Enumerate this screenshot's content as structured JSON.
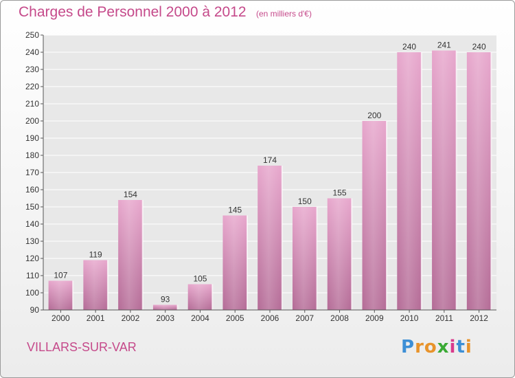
{
  "title": "Charges de Personnel 2000 à 2012",
  "subtitle": "(en milliers d'€)",
  "commune": "VILLARS-SUR-VAR",
  "logo": {
    "letters": [
      "P",
      "r",
      "o",
      "x",
      "i",
      "t",
      "i"
    ],
    "colors": [
      "#3d8fd6",
      "#e8932b",
      "#e8932b",
      "#3aaa35",
      "#d93a8c",
      "#3d8fd6",
      "#e8932b"
    ]
  },
  "colors": {
    "bar_top": "#e7a6cc",
    "bar_bottom": "#b46b96",
    "text": "#333333",
    "accent": "#c5498a",
    "grid": "#ffffff",
    "plot_bg": "#e8e8e8"
  },
  "chart_data": {
    "type": "bar",
    "categories": [
      "2000",
      "2001",
      "2002",
      "2003",
      "2004",
      "2005",
      "2006",
      "2007",
      "2008",
      "2009",
      "2010",
      "2011",
      "2012"
    ],
    "values": [
      107,
      119,
      154,
      93,
      105,
      145,
      174,
      150,
      155,
      200,
      240,
      241,
      240
    ],
    "data_labels": [
      "107",
      "119",
      "154",
      "93",
      "105",
      "145",
      "174",
      "150",
      "155",
      "200",
      "240",
      "241",
      "240"
    ],
    "title": "Charges de Personnel 2000 à 2012",
    "subtitle": "(en milliers d'€)",
    "xlabel": "",
    "ylabel": "",
    "ylim": [
      90,
      250
    ],
    "yticks": [
      "90",
      "100",
      "110",
      "120",
      "130",
      "140",
      "150",
      "160",
      "170",
      "180",
      "190",
      "200",
      "210",
      "220",
      "230",
      "240",
      "250"
    ],
    "grid": true,
    "legend": "none"
  }
}
